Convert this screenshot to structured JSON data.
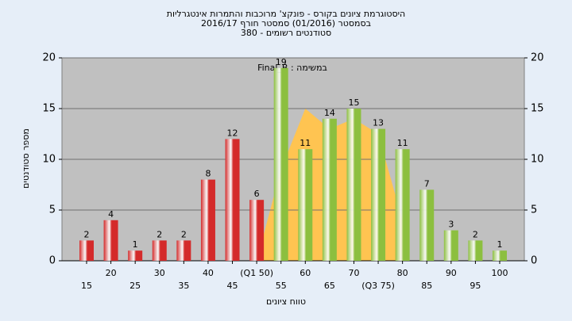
{
  "chart_data": {
    "type": "bar",
    "title": "היסטוגרמת ציונים בקורס - פונקצ' מרוכבות והתמרות אינטגרליות",
    "subtitle": "בסמסטר  (01/2016)  סמסטר חורף  2016/17",
    "subtitle2": "סטודנטים רשומים - 380",
    "annotation": "במשימה : Final_B",
    "x_label": "טווח ציונים",
    "y_label": "מספר סטודנטים",
    "categories": [
      "15",
      "20",
      "25",
      "30",
      "35",
      "40",
      "45",
      "(Q1 50)",
      "55",
      "60",
      "65",
      "70",
      "(Q3 75)",
      "80",
      "85",
      "90",
      "95",
      "100"
    ],
    "series": [
      {
        "color": "#d42a2a",
        "values": [
          2,
          4,
          1,
          2,
          2,
          8,
          12,
          6,
          null,
          null,
          null,
          null,
          null,
          null,
          null,
          null,
          null,
          null
        ]
      },
      {
        "color": "#8cbf3f",
        "values": [
          null,
          null,
          null,
          null,
          null,
          null,
          null,
          null,
          19,
          11,
          14,
          15,
          13,
          11,
          7,
          3,
          2,
          1
        ]
      }
    ],
    "area": {
      "color": "#ffc451",
      "values": [
        null,
        null,
        null,
        null,
        null,
        null,
        null,
        0,
        9,
        15,
        13,
        14,
        12.5,
        4,
        null,
        null,
        null,
        null
      ]
    },
    "ylim": [
      0,
      20
    ],
    "yticks": [
      0,
      5,
      10,
      15,
      20
    ],
    "y2lim": [
      0,
      20
    ],
    "y2ticks": [
      0,
      5,
      10,
      15,
      20
    ],
    "grid": true
  }
}
